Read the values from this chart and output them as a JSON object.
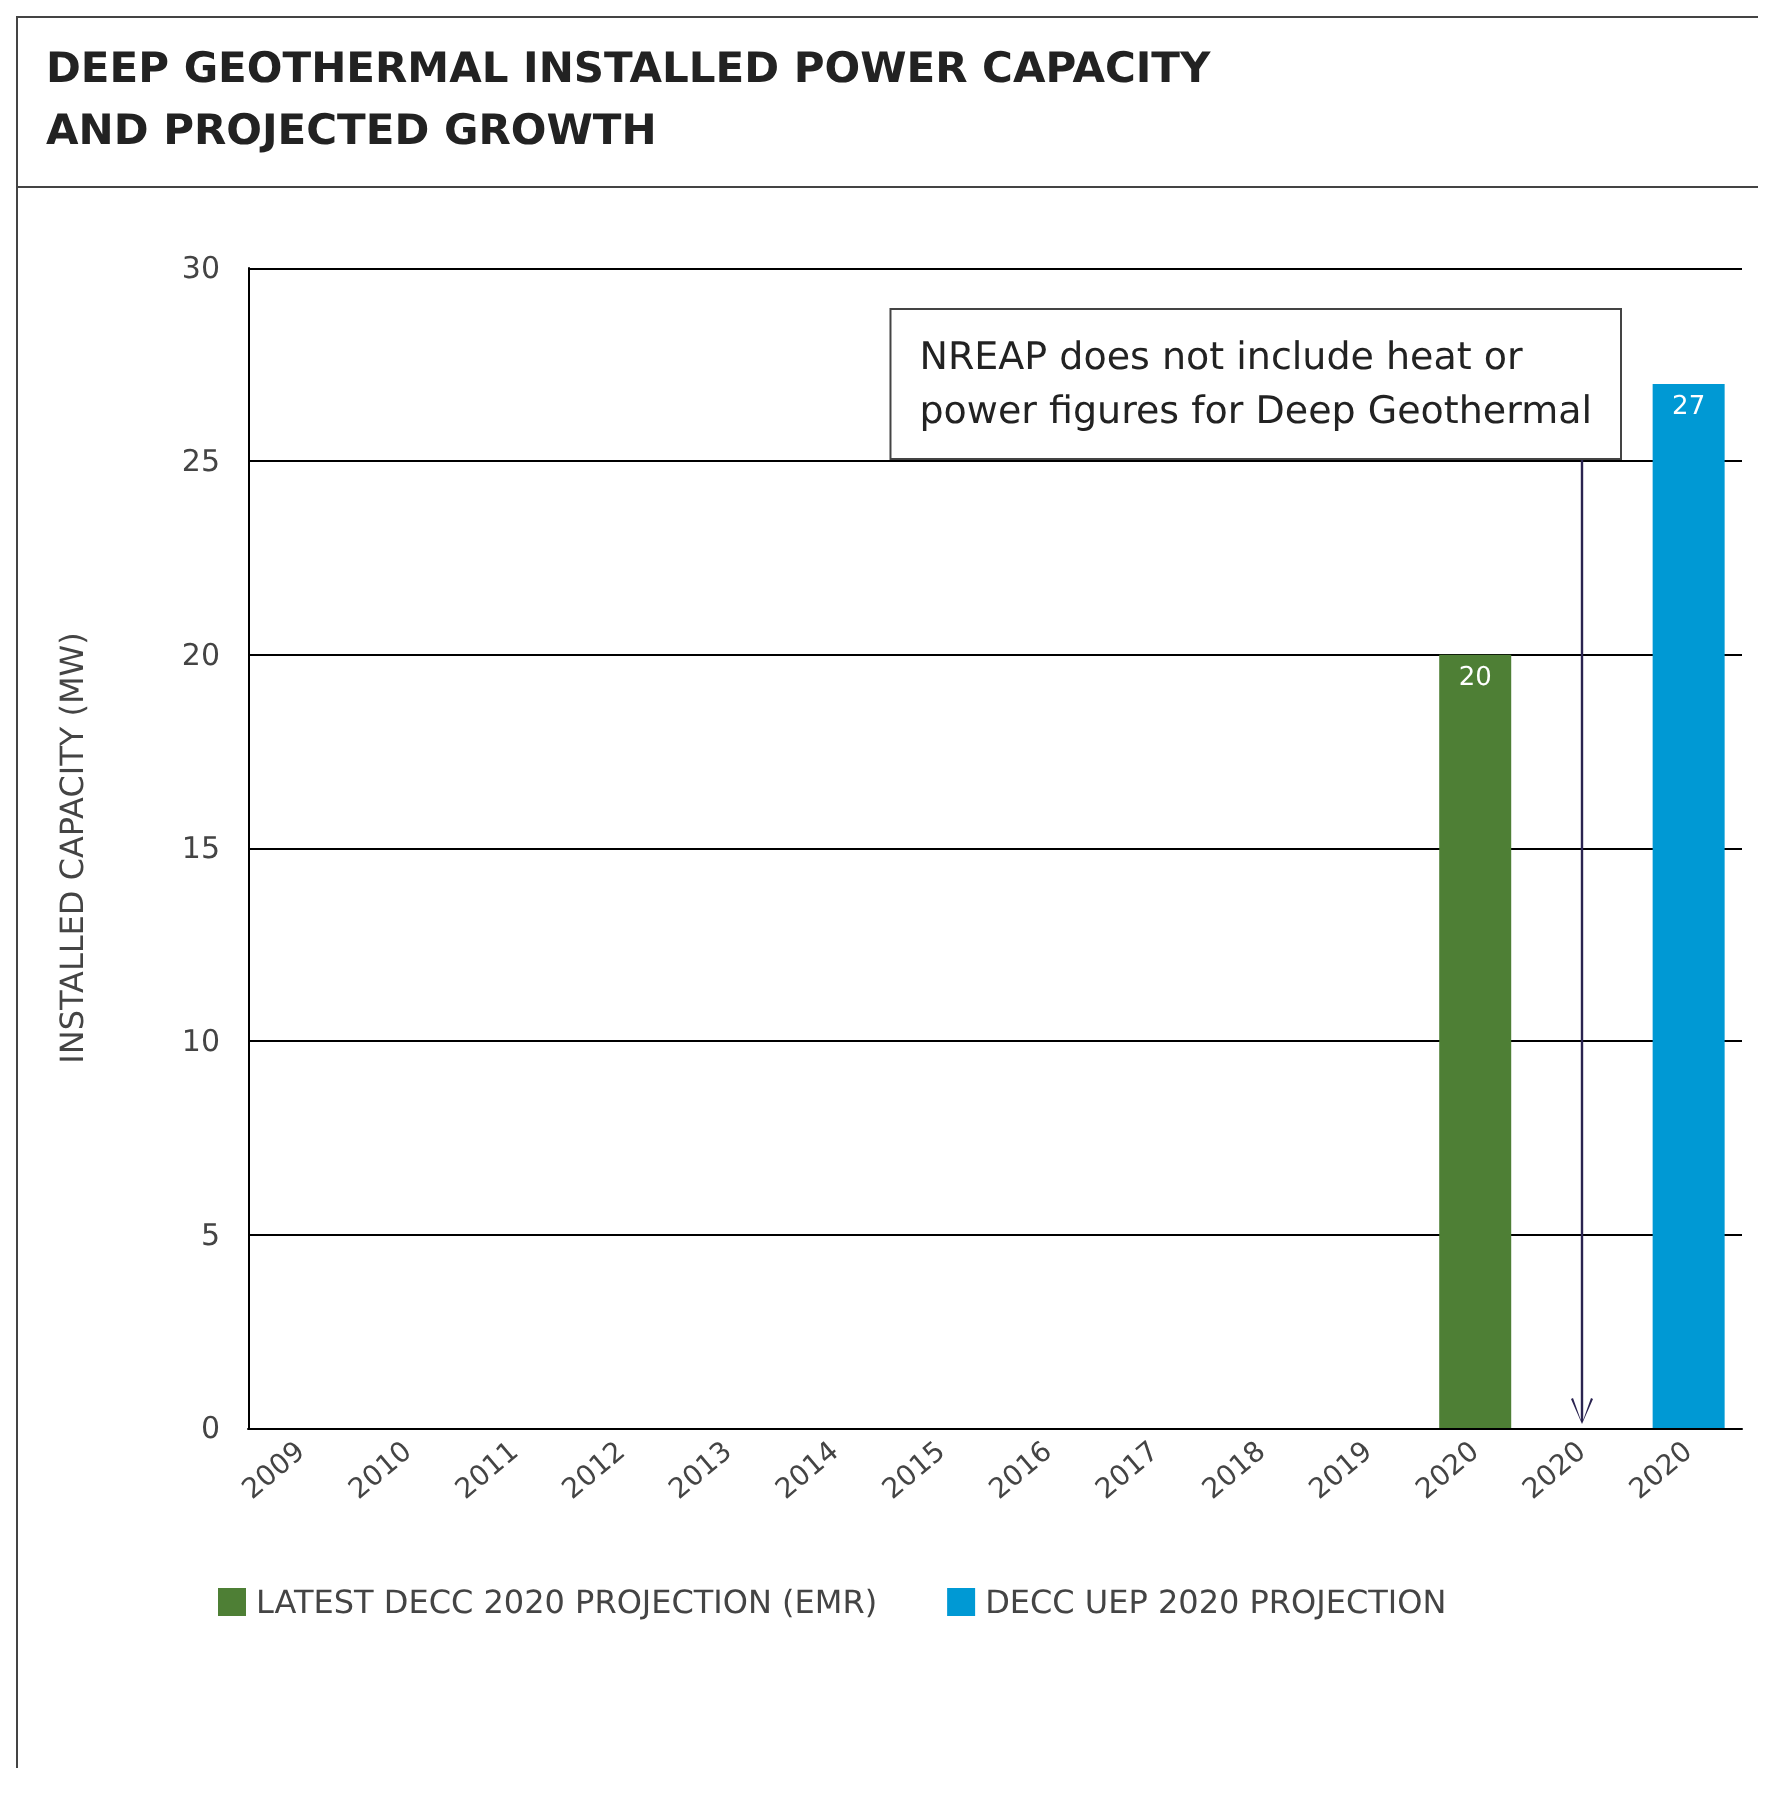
{
  "chart_data": {
    "type": "bar",
    "title": "DEEP GEOTHERMAL INSTALLED POWER CAPACITY\nAND PROJECTED GROWTH",
    "ylabel": "INSTALLED CAPACITY (MW)",
    "categories": [
      "2009",
      "2010",
      "2011",
      "2012",
      "2013",
      "2014",
      "2015",
      "2016",
      "2017",
      "2018",
      "2019",
      "2020",
      "2020",
      "2020"
    ],
    "series": [
      {
        "name": "LATEST DECC 2020 PROJECTION (EMR)",
        "color": "#4e7f35",
        "values": [
          null,
          null,
          null,
          null,
          null,
          null,
          null,
          null,
          null,
          null,
          null,
          20,
          null,
          null
        ],
        "value_labels": [
          null,
          null,
          null,
          null,
          null,
          null,
          null,
          null,
          null,
          null,
          null,
          "20",
          null,
          null
        ]
      },
      {
        "name": "DECC UEP 2020 PROJECTION",
        "color": "#0099d4",
        "values": [
          null,
          null,
          null,
          null,
          null,
          null,
          null,
          null,
          null,
          null,
          null,
          null,
          null,
          27
        ],
        "value_labels": [
          null,
          null,
          null,
          null,
          null,
          null,
          null,
          null,
          null,
          null,
          null,
          null,
          null,
          "27"
        ]
      }
    ],
    "annotations": [
      "NREAP does not include heat or\npower figures for Deep Geothermal"
    ],
    "ylim": [
      0,
      30
    ],
    "yticks": [
      0,
      5,
      10,
      15,
      20,
      25,
      30
    ],
    "grid": "y",
    "legend": "bottom left"
  }
}
